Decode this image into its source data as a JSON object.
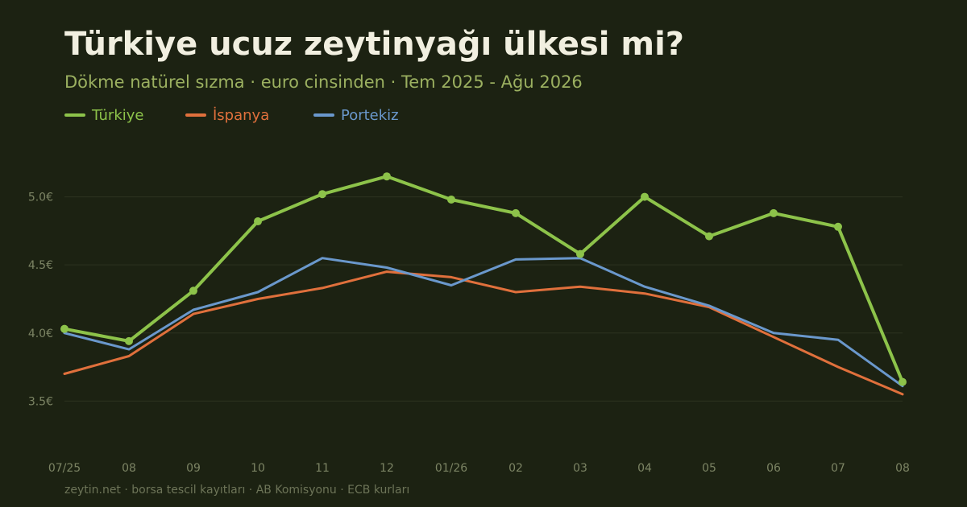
{
  "header": {
    "title": "Türkiye ucuz zeytinyağı ülkesi mi?",
    "subtitle": "Dökme natürel sızma · euro cinsinden · Tem 2025 - Ağu 2026"
  },
  "footer": {
    "source": "zeytin.net · borsa tescil kayıtları · AB Komisyonu · ECB kurları"
  },
  "colors": {
    "background": "#1c2212",
    "turkiye": "#8dc34a",
    "ispanya": "#e0703c",
    "portekiz": "#6a98cc",
    "grid": "#2c3320",
    "axis_text": "#7c8464"
  },
  "chart_data": {
    "type": "line",
    "title": "Türkiye ucuz zeytinyağı ülkesi mi?",
    "subtitle": "Dökme natürel sızma · euro cinsinden · Tem 2025 - Ağu 2026",
    "categories": [
      "07/25",
      "08",
      "09",
      "10",
      "11",
      "12",
      "01/26",
      "02",
      "03",
      "04",
      "05",
      "06",
      "07",
      "08"
    ],
    "yticks": [
      "3.5€",
      "4.0€",
      "4.5€",
      "5.0€"
    ],
    "ytick_values": [
      3.5,
      4.0,
      4.5,
      5.0
    ],
    "ylim": [
      3.1,
      5.5
    ],
    "grid": true,
    "legend_position": "top-left",
    "series": [
      {
        "name": "Türkiye",
        "color": "#8dc34a",
        "markers": true,
        "values": [
          4.03,
          3.94,
          4.31,
          4.82,
          5.02,
          5.15,
          4.98,
          4.88,
          4.58,
          5.0,
          4.71,
          4.88,
          4.78,
          3.64
        ]
      },
      {
        "name": "İspanya",
        "color": "#e0703c",
        "markers": false,
        "values": [
          3.7,
          3.83,
          4.14,
          4.25,
          4.33,
          4.45,
          4.41,
          4.3,
          4.34,
          4.29,
          4.19,
          3.97,
          3.75,
          3.55
        ]
      },
      {
        "name": "Portekiz",
        "color": "#6a98cc",
        "markers": false,
        "values": [
          4.0,
          3.88,
          4.17,
          4.3,
          4.55,
          4.48,
          4.35,
          4.54,
          4.55,
          4.34,
          4.2,
          4.0,
          3.95,
          3.61
        ]
      }
    ]
  }
}
